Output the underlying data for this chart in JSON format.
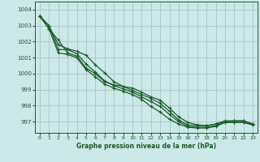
{
  "title": "Graphe pression niveau de la mer (hPa)",
  "bg_color": "#cce8e8",
  "grid_color": "#aacccc",
  "line_color": "#1a5c2a",
  "xlim": [
    -0.5,
    23.5
  ],
  "ylim": [
    996.3,
    1004.5
  ],
  "yticks": [
    997,
    998,
    999,
    1000,
    1001,
    1002,
    1003,
    1004
  ],
  "xticks": [
    0,
    1,
    2,
    3,
    4,
    5,
    6,
    7,
    8,
    9,
    10,
    11,
    12,
    13,
    14,
    15,
    16,
    17,
    18,
    19,
    20,
    21,
    22,
    23
  ],
  "series": [
    [
      1003.6,
      1002.8,
      1002.1,
      1001.3,
      1001.1,
      1000.35,
      1000.0,
      999.5,
      999.3,
      999.2,
      999.1,
      998.85,
      998.55,
      998.35,
      997.85,
      997.3,
      996.95,
      996.8,
      996.75,
      996.85,
      997.0,
      997.05,
      997.05,
      996.85
    ],
    [
      1003.6,
      1002.8,
      1001.3,
      1001.2,
      1001.0,
      1000.25,
      999.8,
      999.35,
      999.1,
      998.9,
      998.7,
      998.4,
      997.95,
      997.6,
      997.15,
      996.85,
      996.65,
      996.6,
      996.6,
      996.7,
      996.95,
      996.95,
      996.95,
      996.8
    ],
    [
      1003.6,
      1003.0,
      1001.5,
      1001.5,
      1001.25,
      1000.6,
      1000.1,
      999.55,
      999.25,
      999.05,
      998.85,
      998.55,
      998.25,
      997.95,
      997.45,
      997.0,
      996.7,
      996.65,
      996.65,
      996.75,
      996.95,
      996.95,
      996.95,
      996.8
    ],
    [
      1003.6,
      1003.0,
      1001.8,
      1001.55,
      1001.4,
      1001.15,
      1000.55,
      1000.05,
      999.5,
      999.2,
      998.95,
      998.7,
      998.45,
      998.15,
      997.65,
      997.1,
      996.8,
      996.75,
      996.75,
      996.85,
      997.05,
      997.05,
      997.05,
      996.85
    ]
  ]
}
